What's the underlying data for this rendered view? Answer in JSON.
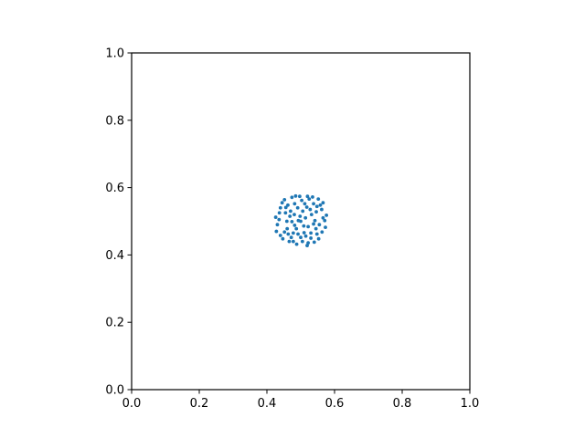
{
  "chart_data": {
    "type": "scatter",
    "title": "",
    "xlabel": "",
    "ylabel": "",
    "xlim": [
      0.0,
      1.0
    ],
    "ylim": [
      0.0,
      1.0
    ],
    "grid": false,
    "legend": "none",
    "x_ticks": [
      "0.0",
      "0.2",
      "0.4",
      "0.6",
      "0.8",
      "1.0"
    ],
    "y_ticks": [
      "0.0",
      "0.2",
      "0.4",
      "0.6",
      "0.8",
      "1.0"
    ],
    "series": [
      {
        "name": "points",
        "color": "#1f77b4",
        "points": [
          [
            0.5,
            0.5
          ],
          [
            0.462,
            0.548
          ],
          [
            0.538,
            0.552
          ],
          [
            0.452,
            0.468
          ],
          [
            0.548,
            0.462
          ],
          [
            0.474,
            0.571
          ],
          [
            0.525,
            0.566
          ],
          [
            0.426,
            0.512
          ],
          [
            0.571,
            0.502
          ],
          [
            0.488,
            0.432
          ],
          [
            0.519,
            0.428
          ],
          [
            0.44,
            0.54
          ],
          [
            0.562,
            0.535
          ],
          [
            0.44,
            0.458
          ],
          [
            0.563,
            0.468
          ],
          [
            0.497,
            0.574
          ],
          [
            0.481,
            0.52
          ],
          [
            0.522,
            0.484
          ],
          [
            0.506,
            0.53
          ],
          [
            0.487,
            0.478
          ],
          [
            0.459,
            0.5
          ],
          [
            0.542,
            0.502
          ],
          [
            0.5,
            0.452
          ],
          [
            0.512,
            0.552
          ],
          [
            0.47,
            0.53
          ],
          [
            0.532,
            0.52
          ],
          [
            0.472,
            0.452
          ],
          [
            0.53,
            0.45
          ],
          [
            0.452,
            0.564
          ],
          [
            0.552,
            0.566
          ],
          [
            0.431,
            0.49
          ],
          [
            0.576,
            0.518
          ],
          [
            0.505,
            0.44
          ],
          [
            0.466,
            0.44
          ],
          [
            0.54,
            0.438
          ],
          [
            0.455,
            0.525
          ],
          [
            0.555,
            0.49
          ],
          [
            0.493,
            0.502
          ],
          [
            0.514,
            0.51
          ],
          [
            0.482,
            0.552
          ],
          [
            0.52,
            0.574
          ],
          [
            0.447,
            0.448
          ],
          [
            0.553,
            0.448
          ],
          [
            0.509,
            0.486
          ],
          [
            0.474,
            0.499
          ],
          [
            0.528,
            0.535
          ],
          [
            0.46,
            0.478
          ],
          [
            0.545,
            0.478
          ],
          [
            0.492,
            0.462
          ],
          [
            0.51,
            0.466
          ],
          [
            0.437,
            0.525
          ],
          [
            0.566,
            0.555
          ],
          [
            0.485,
            0.575
          ],
          [
            0.535,
            0.572
          ],
          [
            0.445,
            0.555
          ],
          [
            0.558,
            0.548
          ],
          [
            0.478,
            0.44
          ],
          [
            0.522,
            0.436
          ],
          [
            0.428,
            0.47
          ],
          [
            0.573,
            0.482
          ],
          [
            0.498,
            0.515
          ],
          [
            0.518,
            0.542
          ],
          [
            0.468,
            0.515
          ],
          [
            0.538,
            0.492
          ],
          [
            0.482,
            0.488
          ],
          [
            0.53,
            0.465
          ],
          [
            0.463,
            0.462
          ],
          [
            0.546,
            0.528
          ],
          [
            0.503,
            0.562
          ],
          [
            0.491,
            0.54
          ],
          [
            0.456,
            0.541
          ],
          [
            0.548,
            0.544
          ],
          [
            0.436,
            0.505
          ],
          [
            0.566,
            0.51
          ],
          [
            0.478,
            0.465
          ],
          [
            0.515,
            0.456
          ]
        ]
      }
    ]
  }
}
